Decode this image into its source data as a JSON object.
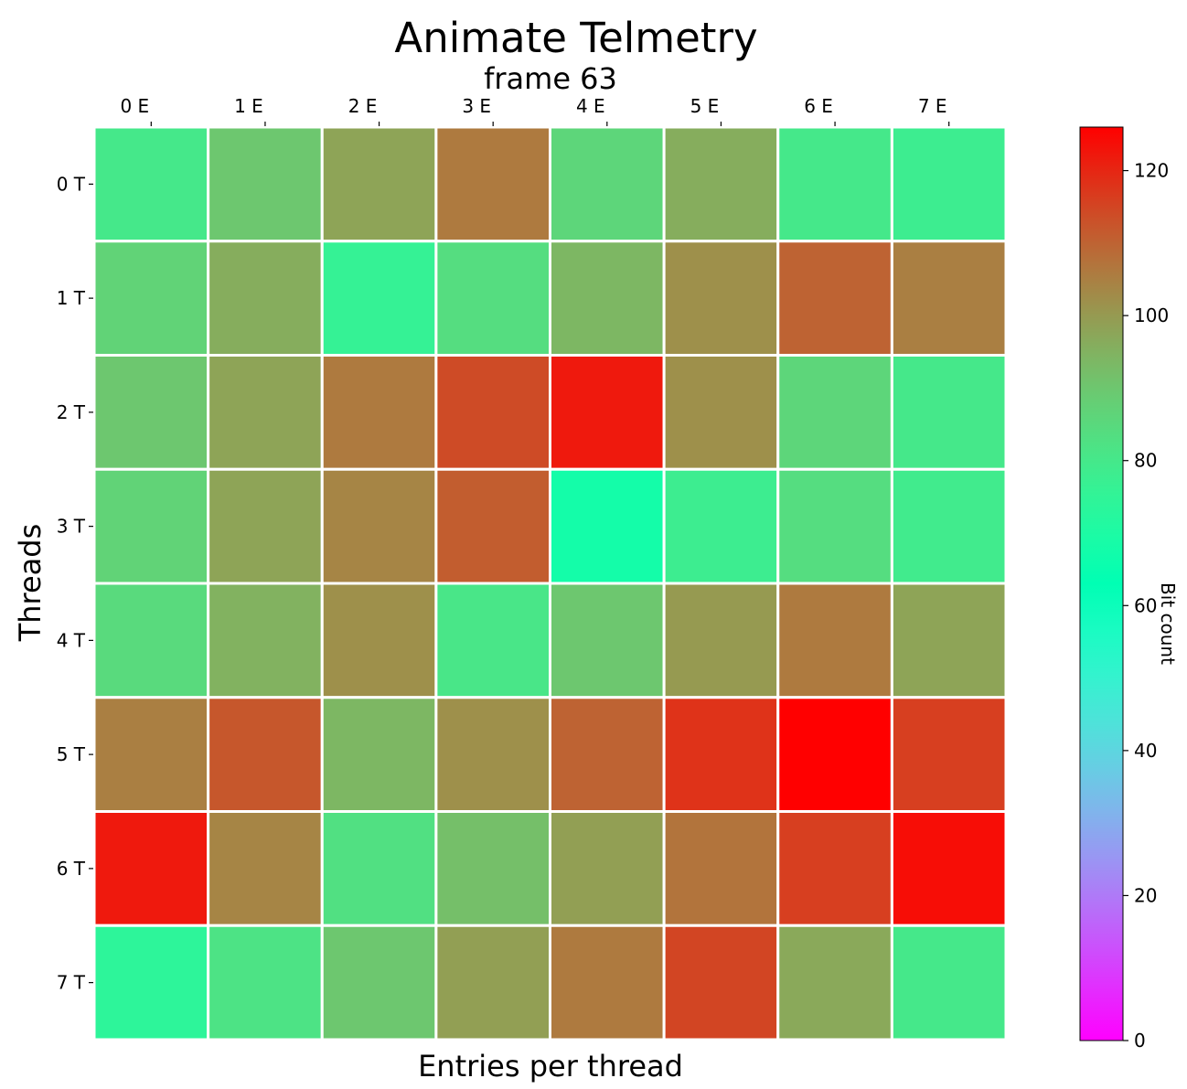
{
  "chart_data": {
    "type": "heatmap",
    "title": "Animate Telmetry",
    "subtitle": "frame 63",
    "xlabel": "Entries per thread",
    "ylabel": "Threads",
    "x_categories": [
      "0 E",
      "1 E",
      "2 E",
      "3 E",
      "4 E",
      "5 E",
      "6 E",
      "7 E"
    ],
    "y_categories": [
      "0 T",
      "1 T",
      "2 T",
      "3 T",
      "4 T",
      "5 T",
      "6 T",
      "7 T"
    ],
    "x_tick_position": "top",
    "values": [
      [
        80,
        90,
        98,
        106,
        86,
        96,
        80,
        78
      ],
      [
        87,
        96,
        76,
        84,
        94,
        102,
        110,
        105
      ],
      [
        90,
        98,
        106,
        114,
        122,
        102,
        86,
        80
      ],
      [
        87,
        98,
        104,
        111,
        68,
        78,
        84,
        79
      ],
      [
        85,
        95,
        102,
        81,
        90,
        100,
        106,
        98
      ],
      [
        105,
        112,
        94,
        102,
        110,
        118,
        126,
        116
      ],
      [
        122,
        104,
        83,
        92,
        99,
        107,
        116,
        124
      ],
      [
        74,
        82,
        90,
        99,
        106,
        115,
        97,
        80
      ]
    ],
    "colorbar": {
      "label": "Bit count",
      "range": [
        0,
        126
      ],
      "ticks": [
        0,
        20,
        40,
        60,
        80,
        100,
        120
      ],
      "colormap": "rainbow"
    },
    "grid": false,
    "cell_separator_color": "#ffffff"
  }
}
